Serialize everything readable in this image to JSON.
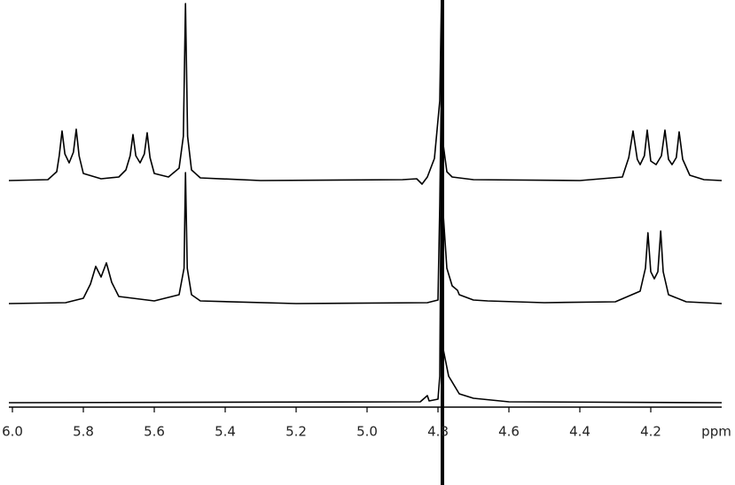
{
  "chart_data": {
    "type": "line",
    "xlabel": "ppm",
    "xlim": [
      6.01,
      4.0
    ],
    "xticks": [
      {
        "value": 6,
        "label": "6.0"
      },
      5.8,
      5.6,
      5.4,
      5.2,
      {
        "value": 5,
        "label": "5.0"
      },
      4.8,
      4.6,
      4.4,
      4.2
    ],
    "ylim": [
      0,
      200
    ],
    "series": [
      {
        "color": "#000000",
        "x": [
          6.01,
          5.9,
          5.875,
          5.868,
          5.86,
          5.852,
          5.84,
          5.828,
          5.82,
          5.812,
          5.8,
          5.75,
          5.7,
          5.68,
          5.668,
          5.66,
          5.652,
          5.64,
          5.628,
          5.62,
          5.612,
          5.6,
          5.56,
          5.53,
          5.518,
          5.512,
          5.506,
          5.495,
          5.47,
          5.3,
          4.9,
          4.86,
          4.845,
          4.83,
          4.81,
          4.795,
          4.79,
          4.785,
          4.775,
          4.76,
          4.7,
          4.4,
          4.28,
          4.262,
          4.25,
          4.238,
          4.23,
          4.218,
          4.21,
          4.2,
          4.185,
          4.17,
          4.16,
          4.15,
          4.14,
          4.128,
          4.12,
          4.11,
          4.09,
          4.05,
          4.0
        ],
        "values": [
          0,
          1,
          10,
          28,
          56,
          30,
          20,
          32,
          58,
          28,
          8,
          2,
          4,
          12,
          28,
          52,
          28,
          20,
          30,
          54,
          26,
          8,
          4,
          14,
          50,
          200,
          50,
          12,
          3,
          0,
          1,
          2,
          -4,
          4,
          25,
          90,
          210,
          40,
          10,
          4,
          1,
          0,
          4,
          26,
          56,
          24,
          18,
          28,
          57,
          22,
          18,
          28,
          57,
          24,
          18,
          26,
          55,
          24,
          6,
          1,
          0
        ]
      },
      {
        "color": "#000000",
        "x": [
          6.01,
          5.85,
          5.8,
          5.78,
          5.765,
          5.75,
          5.735,
          5.72,
          5.7,
          5.6,
          5.53,
          5.516,
          5.512,
          5.507,
          5.495,
          5.47,
          5.2,
          4.83,
          4.8,
          4.795,
          4.79,
          4.785,
          4.775,
          4.76,
          4.745,
          4.74,
          4.7,
          4.66,
          4.5,
          4.3,
          4.23,
          4.215,
          4.208,
          4.2,
          4.19,
          4.18,
          4.172,
          4.165,
          4.15,
          4.1,
          4.0
        ],
        "values": [
          0,
          1,
          6,
          22,
          42,
          30,
          46,
          24,
          8,
          3,
          10,
          40,
          148,
          40,
          10,
          3,
          0,
          1,
          4,
          110,
          260,
          100,
          40,
          20,
          15,
          10,
          4,
          3,
          1,
          2,
          14,
          40,
          80,
          36,
          28,
          36,
          82,
          36,
          10,
          2,
          0
        ]
      },
      {
        "color": "#000000",
        "x": [
          6.01,
          4.85,
          4.83,
          4.825,
          4.8,
          4.795,
          4.79,
          4.785,
          4.77,
          4.74,
          4.7,
          4.65,
          4.6,
          4.0
        ],
        "values": [
          0,
          1,
          8,
          2,
          4,
          30,
          300,
          60,
          30,
          10,
          5,
          3,
          1,
          0
        ]
      }
    ]
  }
}
